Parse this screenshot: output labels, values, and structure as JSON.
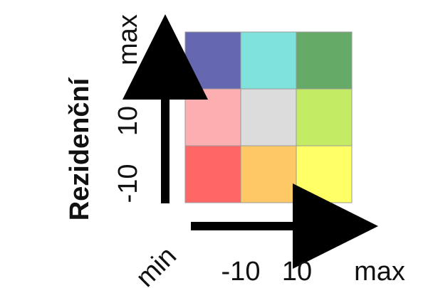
{
  "chart_data": {
    "type": "heatmap",
    "title": "",
    "ylabel": "Rezidenční",
    "xlabel": "",
    "corner_label": "min",
    "x_tick_labels": [
      "-10",
      "10",
      "max"
    ],
    "y_tick_labels": [
      "-10",
      "10",
      "max"
    ],
    "rows": 3,
    "cols": 3,
    "cells": [
      {
        "row": 0,
        "col": 0,
        "color": "#6667b1"
      },
      {
        "row": 0,
        "col": 1,
        "color": "#7fe3dc"
      },
      {
        "row": 0,
        "col": 2,
        "color": "#66aa67"
      },
      {
        "row": 1,
        "col": 0,
        "color": "#fdaeb1"
      },
      {
        "row": 1,
        "col": 1,
        "color": "#dcdcdc"
      },
      {
        "row": 1,
        "col": 2,
        "color": "#c3ec64"
      },
      {
        "row": 2,
        "col": 0,
        "color": "#ff6766"
      },
      {
        "row": 2,
        "col": 1,
        "color": "#fec866"
      },
      {
        "row": 2,
        "col": 2,
        "color": "#ffff66"
      }
    ],
    "grid": true,
    "legend": "none"
  }
}
